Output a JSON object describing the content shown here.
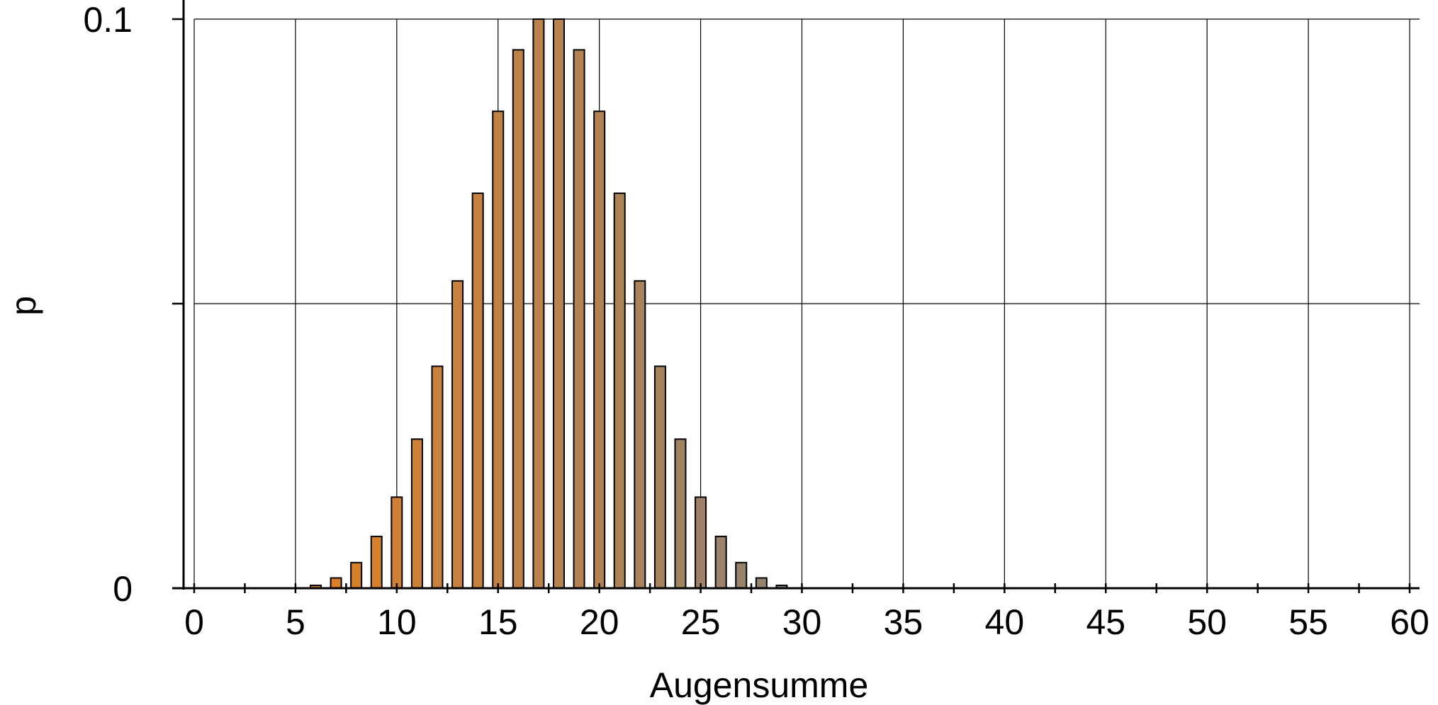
{
  "chart_data": {
    "type": "bar",
    "title": "",
    "xlabel": "Augensumme",
    "ylabel": "p",
    "xlim": [
      0,
      60
    ],
    "ylim": [
      0,
      0.1
    ],
    "x_ticks_labeled": [
      "0",
      "5",
      "10",
      "15",
      "20",
      "25",
      "30",
      "35",
      "40",
      "45",
      "50",
      "55",
      "60"
    ],
    "y_ticks_labeled": [
      "0",
      "0.1"
    ],
    "grid": true,
    "legend": "none",
    "bar_color_start": "#de8025",
    "bar_color_end": "#928373",
    "bar_stroke": "#000000",
    "x": [
      6,
      7,
      8,
      9,
      10,
      11,
      12,
      13,
      14,
      15,
      16,
      17,
      18,
      19,
      20,
      21,
      22,
      23,
      24,
      25,
      26,
      27,
      28,
      29
    ],
    "values": [
      0.0005,
      0.0018,
      0.0045,
      0.0091,
      0.016,
      0.0262,
      0.039,
      0.054,
      0.0694,
      0.0838,
      0.0946,
      0.1,
      0.1,
      0.0946,
      0.0838,
      0.0694,
      0.054,
      0.039,
      0.0262,
      0.016,
      0.0091,
      0.0045,
      0.0018,
      0.0005
    ]
  }
}
